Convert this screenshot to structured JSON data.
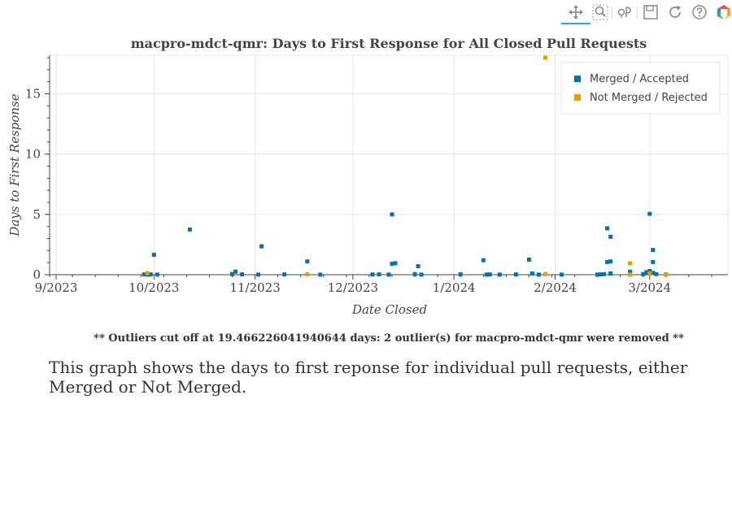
{
  "toolbar": {
    "tools": [
      {
        "name": "pan",
        "icon": "pan-icon",
        "active": true
      },
      {
        "name": "box-zoom",
        "icon": "box-zoom-icon"
      },
      {
        "name": "wheel-zoom",
        "icon": "wheel-zoom-icon"
      },
      {
        "name": "save",
        "icon": "save-icon"
      },
      {
        "name": "reset",
        "icon": "reset-icon"
      },
      {
        "name": "help",
        "icon": "help-icon"
      },
      {
        "name": "bokeh",
        "icon": "bokeh-logo-icon"
      }
    ]
  },
  "chart_data": {
    "type": "scatter",
    "title": "macpro-mdct-qmr: Days to First Response for All Closed Pull Requests",
    "xlabel": "Date Closed",
    "ylabel": "Days to First Response",
    "x_ticks": [
      "9/2023",
      "10/2023",
      "11/2023",
      "12/2023",
      "1/2024",
      "2/2024",
      "3/2024"
    ],
    "y_ticks": [
      "0",
      "5",
      "10",
      "15"
    ],
    "xlim": [
      "2023-08-30",
      "2024-03-25"
    ],
    "ylim": [
      0,
      18.2
    ],
    "grid": true,
    "legend": "top-right",
    "series": [
      {
        "name": "Merged / Accepted",
        "color": "#0072b2",
        "points": [
          [
            "2023-09-28",
            0.02
          ],
          [
            "2023-09-29",
            0.01
          ],
          [
            "2023-09-30",
            0.02
          ],
          [
            "2023-10-01",
            1.65
          ],
          [
            "2023-10-02",
            0.01
          ],
          [
            "2023-10-12",
            3.75
          ],
          [
            "2023-10-25",
            0.05
          ],
          [
            "2023-10-26",
            0.25
          ],
          [
            "2023-10-28",
            0.03
          ],
          [
            "2023-11-02",
            0.01
          ],
          [
            "2023-11-03",
            2.35
          ],
          [
            "2023-11-10",
            0.02
          ],
          [
            "2023-11-17",
            1.1
          ],
          [
            "2023-11-21",
            0.01
          ],
          [
            "2023-12-07",
            0.02
          ],
          [
            "2023-12-09",
            0.03
          ],
          [
            "2023-12-12",
            0.01
          ],
          [
            "2023-12-13",
            0.9
          ],
          [
            "2023-12-13",
            5.0
          ],
          [
            "2023-12-14",
            0.95
          ],
          [
            "2023-12-20",
            0.05
          ],
          [
            "2023-12-21",
            0.7
          ],
          [
            "2023-12-22",
            0.01
          ],
          [
            "2024-01-03",
            0.03
          ],
          [
            "2024-01-10",
            1.2
          ],
          [
            "2024-01-11",
            0.01
          ],
          [
            "2024-01-12",
            0.02
          ],
          [
            "2024-01-15",
            0.01
          ],
          [
            "2024-01-20",
            0.02
          ],
          [
            "2024-01-24",
            1.25
          ],
          [
            "2024-01-25",
            0.1
          ],
          [
            "2024-01-27",
            0.01
          ],
          [
            "2024-02-03",
            0.01
          ],
          [
            "2024-02-14",
            0.01
          ],
          [
            "2024-02-15",
            0.02
          ],
          [
            "2024-02-16",
            0.05
          ],
          [
            "2024-02-17",
            1.05
          ],
          [
            "2024-02-17",
            3.85
          ],
          [
            "2024-02-18",
            3.15
          ],
          [
            "2024-02-18",
            1.1
          ],
          [
            "2024-02-18",
            0.1
          ],
          [
            "2024-02-24",
            0.25
          ],
          [
            "2024-02-28",
            0.05
          ],
          [
            "2024-02-29",
            0.2
          ],
          [
            "2024-03-01",
            5.05
          ],
          [
            "2024-03-02",
            2.05
          ],
          [
            "2024-03-02",
            1.05
          ],
          [
            "2024-03-01",
            0.3
          ],
          [
            "2024-03-02",
            0.15
          ],
          [
            "2024-03-03",
            0.05
          ],
          [
            "2024-03-06",
            0.02
          ]
        ]
      },
      {
        "name": "Not Merged / Rejected",
        "color": "#e69f00",
        "points": [
          [
            "2023-09-29",
            0.12
          ],
          [
            "2023-11-17",
            0.03
          ],
          [
            "2024-01-29",
            18.0
          ],
          [
            "2024-01-29",
            0.05
          ],
          [
            "2024-02-24",
            0.95
          ],
          [
            "2024-02-24",
            0.01
          ],
          [
            "2024-03-01",
            0.1
          ],
          [
            "2024-03-06",
            0.01
          ]
        ]
      }
    ]
  },
  "footnote": "** Outliers cut off at 19.466226041940644 days: 2 outlier(s) for macpro-mdct-qmr were removed **",
  "description": "This graph shows the days to first reponse for individual pull requests, either Merged or Not Merged."
}
